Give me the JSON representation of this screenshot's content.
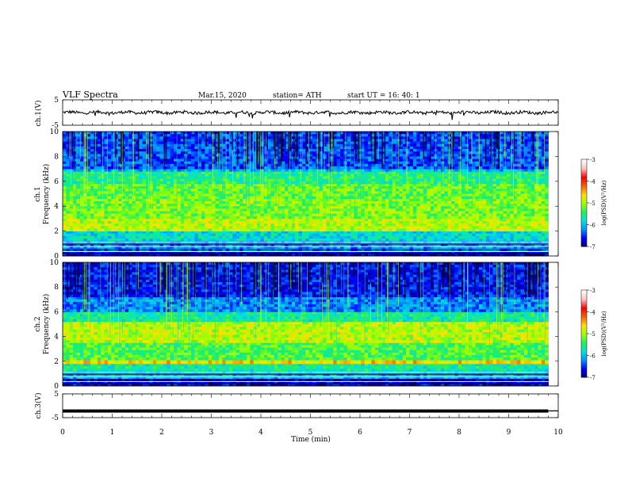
{
  "header": {
    "title": "VLF  Spectra",
    "date": "Mar.15, 2020",
    "station": "station= ATH",
    "start": "start  UT  =    16: 40: 1"
  },
  "colors": {
    "trace": "#000000",
    "colormap": [
      "#00007a",
      "#0000ff",
      "#0090ff",
      "#00e0e0",
      "#20f060",
      "#a0ff00",
      "#ffe000",
      "#ff6000",
      "#ff0000",
      "#ffc0c0",
      "#ffffff"
    ]
  },
  "chart_data": [
    {
      "type": "line",
      "panel": "ch1-waveform",
      "ylabel": "ch.1(V)",
      "ylim": [
        -5,
        5
      ],
      "yticks": [
        "5",
        "-5"
      ],
      "xlim": [
        0,
        10
      ],
      "level_mean": 0,
      "noise_amplitude": 0.6
    },
    {
      "type": "heatmap",
      "panel": "ch1-spectrogram",
      "ylabel_line1": "ch.1",
      "ylabel_line2": "Frequency  (kHz)",
      "ylim": [
        0,
        10
      ],
      "yticks": [
        "0",
        "2",
        "4",
        "6",
        "8",
        "10"
      ],
      "xlim": [
        0,
        10
      ],
      "data_end_min": 9.8,
      "freq_bands_kHz": [
        {
          "from": 0.0,
          "to": 0.4,
          "level": -6.8
        },
        {
          "from": 0.4,
          "to": 1.2,
          "level": -6.2
        },
        {
          "from": 1.2,
          "to": 2.0,
          "level": -5.8
        },
        {
          "from": 2.0,
          "to": 3.0,
          "level": -4.9
        },
        {
          "from": 3.0,
          "to": 4.6,
          "level": -5.1
        },
        {
          "from": 4.6,
          "to": 5.8,
          "level": -5.2
        },
        {
          "from": 5.8,
          "to": 6.8,
          "level": -5.5
        },
        {
          "from": 6.8,
          "to": 7.0,
          "level": -6.0
        },
        {
          "from": 7.0,
          "to": 10.0,
          "level": -6.4
        }
      ],
      "colorbar": {
        "label": "log(PSD)(V²/Hz)",
        "ticks": [
          "-3",
          "-4",
          "-5",
          "-6",
          "-7"
        ],
        "range": [
          -7,
          -3
        ]
      }
    },
    {
      "type": "heatmap",
      "panel": "ch2-spectrogram",
      "ylabel_line1": "ch.2",
      "ylabel_line2": "Frequency  (kHz)",
      "ylim": [
        0,
        10
      ],
      "yticks": [
        "0",
        "2",
        "4",
        "6",
        "8",
        "10"
      ],
      "xlim": [
        0,
        10
      ],
      "data_end_min": 9.8,
      "freq_bands_kHz": [
        {
          "from": 0.0,
          "to": 0.6,
          "level": -6.7
        },
        {
          "from": 0.6,
          "to": 1.2,
          "level": -6.0
        },
        {
          "from": 1.2,
          "to": 1.8,
          "level": -5.6
        },
        {
          "from": 1.8,
          "to": 2.1,
          "level": -4.6
        },
        {
          "from": 2.1,
          "to": 3.5,
          "level": -5.3
        },
        {
          "from": 3.5,
          "to": 5.2,
          "level": -4.9
        },
        {
          "from": 5.2,
          "to": 6.0,
          "level": -5.6
        },
        {
          "from": 6.0,
          "to": 7.2,
          "level": -6.2
        },
        {
          "from": 7.2,
          "to": 10.0,
          "level": -6.6
        }
      ],
      "colorbar": {
        "label": "log(PSD)(V²/Hz)",
        "ticks": [
          "-3",
          "-4",
          "-5",
          "-6",
          "-7"
        ],
        "range": [
          -7,
          -3
        ]
      }
    },
    {
      "type": "line",
      "panel": "ch3-waveform",
      "ylabel": "ch.3(V)",
      "ylim": [
        -5,
        5
      ],
      "yticks": [
        "5",
        "-5"
      ],
      "xlim": [
        0,
        10
      ],
      "level_mean": -2.2,
      "noise_amplitude": 0.15
    }
  ],
  "xaxis": {
    "label": "Time  (min)",
    "ticks": [
      "0",
      "1",
      "2",
      "3",
      "4",
      "5",
      "6",
      "7",
      "8",
      "9",
      "10"
    ]
  }
}
